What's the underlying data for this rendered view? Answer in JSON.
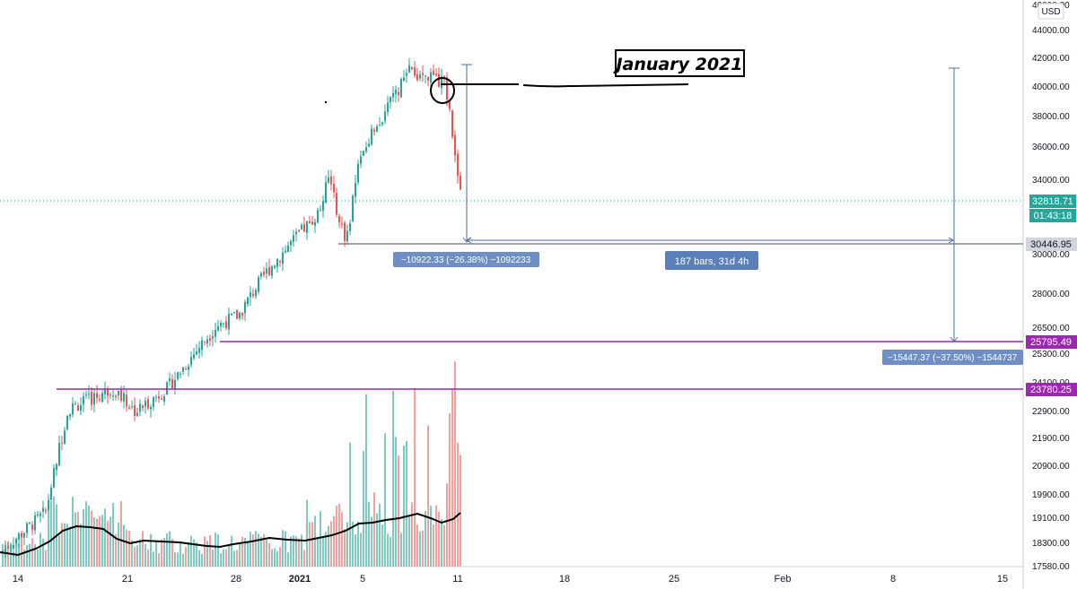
{
  "currency": "USD",
  "annotation_title": "January 2021",
  "price_axis_labels": [
    "46000.00",
    "44000.00",
    "42000.00",
    "40000.00",
    "38000.00",
    "36000.00",
    "34000.00",
    "30000.00",
    "28000.00",
    "26500.00",
    "25300.00",
    "24100.00",
    "22900.00",
    "21900.00",
    "20900.00",
    "19900.00",
    "19100.00",
    "18300.00",
    "17580.00"
  ],
  "date_axis_labels": [
    "14",
    "21",
    "28",
    "2021",
    "5",
    "11",
    "18",
    "25",
    "Feb",
    "8",
    "15"
  ],
  "price_tags": {
    "last_price": "32818.71",
    "countdown": "01:43:18",
    "support_low": "30446.95",
    "level_1": "25795.49",
    "level_2": "23780.25"
  },
  "measure_labels": {
    "drop_1": "−10922.33 (−26.38%) −1092233",
    "bars_range": "187 bars, 31d 4h",
    "drop_2": "−15447.37 (−37.50%) −1544737"
  },
  "colors": {
    "up": "#26a69a",
    "down": "#ef5350",
    "vol_up": "#7fcbc4",
    "vol_down": "#f5a09c",
    "level_line": "#9c27b0",
    "measure": "#4a6fa5",
    "tag_bg": "#5b7fb8"
  },
  "chart_data": {
    "type": "candlestick",
    "title": "",
    "ylabel": "USD",
    "ylim": [
      17580,
      46000
    ],
    "last_price": 32818.71,
    "horizontal_levels": [
      30446.95,
      25795.49,
      23780.25
    ],
    "price_path": [
      {
        "date": "Dec 11",
        "price": 18000
      },
      {
        "date": "Dec 15",
        "price": 19300
      },
      {
        "date": "Dec 17",
        "price": 23000
      },
      {
        "date": "Dec 20",
        "price": 23800
      },
      {
        "date": "Dec 23",
        "price": 22900
      },
      {
        "date": "Dec 25",
        "price": 23800
      },
      {
        "date": "Dec 27",
        "price": 26500
      },
      {
        "date": "Dec 29",
        "price": 27000
      },
      {
        "date": "Dec 31",
        "price": 29000
      },
      {
        "date": "Jan 2",
        "price": 32200
      },
      {
        "date": "Jan 3",
        "price": 34000
      },
      {
        "date": "Jan 4",
        "price": 30500
      },
      {
        "date": "Jan 6",
        "price": 35500
      },
      {
        "date": "Jan 8",
        "price": 41000
      },
      {
        "date": "Jan 10",
        "price": 40200
      },
      {
        "date": "Jan 11",
        "price": 32818.71
      }
    ]
  }
}
